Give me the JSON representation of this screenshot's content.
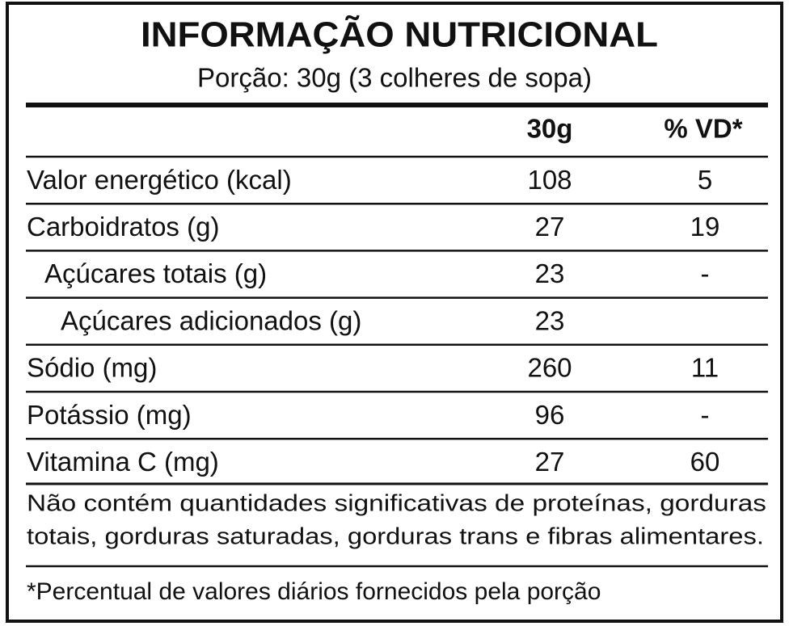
{
  "title": "INFORMAÇÃO NUTRICIONAL",
  "subtitle": "Porção: 30g (3 colheres de sopa)",
  "table": {
    "header": [
      "30g",
      "% VD*"
    ],
    "rows": [
      {
        "label": "Valor energético (kcal)",
        "amount": "108",
        "vd": "5"
      },
      {
        "label": "Carboidratos (g)",
        "amount": "27",
        "vd": "19"
      },
      {
        "label": "Açúcares totais (g)",
        "amount": "23",
        "vd": "-"
      },
      {
        "label": "Açúcares adicionados (g)",
        "amount": "23"
      },
      {
        "label": "Sódio (mg)",
        "amount": "260",
        "vd": "11"
      },
      {
        "label": "Potássio (mg)",
        "amount": "96",
        "vd": "-"
      },
      {
        "label": "Vitamina C (mg)",
        "amount": "27",
        "vd": "60"
      }
    ]
  },
  "notes": [
    "Não contém quantidades significativas de proteínas, gorduras",
    "totais, gorduras saturadas, gorduras trans e fibras alimentares."
  ],
  "footnote": "*Percentual de valores diários fornecidos pela porção"
}
